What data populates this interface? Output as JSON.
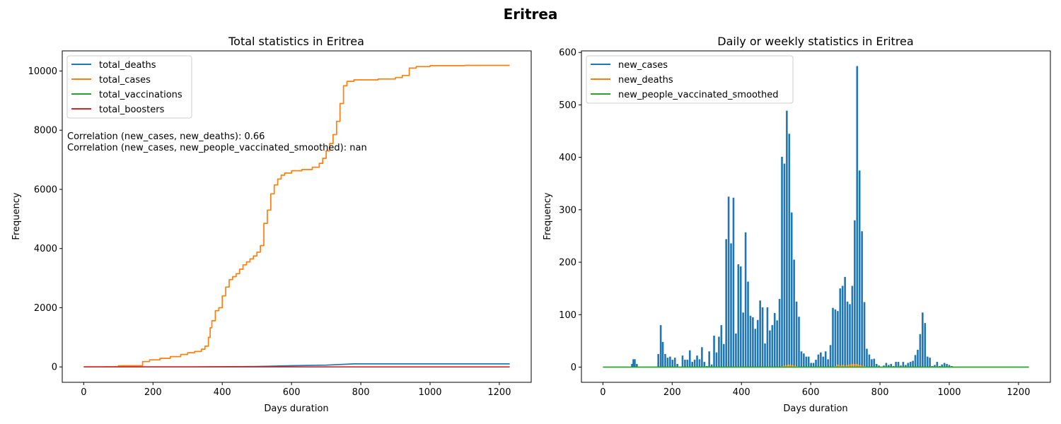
{
  "figure": {
    "title": "Eritrea"
  },
  "chart_data": [
    {
      "type": "line",
      "title": "Total statistics in Eritrea",
      "xlabel": "Days duration",
      "ylabel": "Frequency",
      "xlim": [
        -62,
        1292
      ],
      "ylim": [
        -520,
        10680
      ],
      "xticks": [
        0,
        200,
        400,
        600,
        800,
        1000,
        1200
      ],
      "yticks": [
        0,
        2000,
        4000,
        6000,
        8000,
        10000
      ],
      "legend_position": "top-left",
      "annotations": [
        "Correlation (new_cases, new_deaths): 0.66",
        "Correlation (new_cases, new_people_vaccinated_smoothed): nan"
      ],
      "series": [
        {
          "name": "total_deaths",
          "color": "#1f77b4",
          "points": [
            [
              0,
              0
            ],
            [
              300,
              0
            ],
            [
              500,
              15
            ],
            [
              600,
              40
            ],
            [
              700,
              60
            ],
            [
              780,
              103
            ],
            [
              1230,
              103
            ]
          ]
        },
        {
          "name": "total_cases",
          "color": "#ff7f0e",
          "step": true,
          "points": [
            [
              0,
              0
            ],
            [
              60,
              5
            ],
            [
              100,
              39
            ],
            [
              160,
              40
            ],
            [
              170,
              180
            ],
            [
              190,
              240
            ],
            [
              220,
              290
            ],
            [
              250,
              350
            ],
            [
              280,
              420
            ],
            [
              300,
              480
            ],
            [
              320,
              520
            ],
            [
              340,
              600
            ],
            [
              350,
              700
            ],
            [
              360,
              1000
            ],
            [
              365,
              1320
            ],
            [
              370,
              1560
            ],
            [
              380,
              1900
            ],
            [
              390,
              2000
            ],
            [
              400,
              2400
            ],
            [
              410,
              2700
            ],
            [
              420,
              2950
            ],
            [
              430,
              3050
            ],
            [
              440,
              3150
            ],
            [
              450,
              3300
            ],
            [
              460,
              3450
            ],
            [
              470,
              3550
            ],
            [
              480,
              3650
            ],
            [
              490,
              3750
            ],
            [
              500,
              3880
            ],
            [
              510,
              4100
            ],
            [
              520,
              4850
            ],
            [
              530,
              5300
            ],
            [
              540,
              5850
            ],
            [
              550,
              6150
            ],
            [
              560,
              6350
            ],
            [
              570,
              6480
            ],
            [
              580,
              6550
            ],
            [
              600,
              6630
            ],
            [
              630,
              6670
            ],
            [
              660,
              6750
            ],
            [
              680,
              6880
            ],
            [
              690,
              7050
            ],
            [
              700,
              7300
            ],
            [
              710,
              7550
            ],
            [
              720,
              7850
            ],
            [
              730,
              8300
            ],
            [
              740,
              8900
            ],
            [
              750,
              9500
            ],
            [
              760,
              9650
            ],
            [
              780,
              9700
            ],
            [
              850,
              9730
            ],
            [
              900,
              9780
            ],
            [
              920,
              9850
            ],
            [
              940,
              10100
            ],
            [
              960,
              10150
            ],
            [
              1000,
              10180
            ],
            [
              1100,
              10190
            ],
            [
              1230,
              10190
            ]
          ]
        },
        {
          "name": "total_vaccinations",
          "color": "#2ca02c",
          "points": []
        },
        {
          "name": "total_boosters",
          "color": "#d62728",
          "points": [
            [
              0,
              0
            ],
            [
              1230,
              0
            ]
          ]
        }
      ]
    },
    {
      "type": "bar",
      "title": "Daily or weekly statistics in Eritrea",
      "xlabel": "Days duration",
      "ylabel": "Frequency",
      "xlim": [
        -62,
        1292
      ],
      "ylim": [
        -29,
        603
      ],
      "xticks": [
        0,
        200,
        400,
        600,
        800,
        1000,
        1200
      ],
      "yticks": [
        0,
        100,
        200,
        300,
        400,
        500,
        600
      ],
      "legend_position": "top-left",
      "series": [
        {
          "name": "new_cases",
          "color": "#1f77b4",
          "bars": [
            [
              84,
              6
            ],
            [
              88,
              15
            ],
            [
              92,
              15
            ],
            [
              98,
              6
            ],
            [
              160,
              25
            ],
            [
              167,
              80
            ],
            [
              173,
              48
            ],
            [
              180,
              25
            ],
            [
              187,
              18
            ],
            [
              194,
              20
            ],
            [
              201,
              14
            ],
            [
              208,
              18
            ],
            [
              215,
              6
            ],
            [
              230,
              22
            ],
            [
              237,
              14
            ],
            [
              244,
              14
            ],
            [
              251,
              32
            ],
            [
              258,
              10
            ],
            [
              265,
              14
            ],
            [
              272,
              22
            ],
            [
              279,
              15
            ],
            [
              286,
              38
            ],
            [
              293,
              10
            ],
            [
              300,
              2
            ],
            [
              307,
              30
            ],
            [
              314,
              5
            ],
            [
              321,
              60
            ],
            [
              328,
              28
            ],
            [
              335,
              58
            ],
            [
              342,
              80
            ],
            [
              349,
              44
            ],
            [
              356,
              244
            ],
            [
              363,
              325
            ],
            [
              370,
              236
            ],
            [
              377,
              323
            ],
            [
              384,
              64
            ],
            [
              391,
              196
            ],
            [
              398,
              192
            ],
            [
              405,
              104
            ],
            [
              412,
              257
            ],
            [
              419,
              163
            ],
            [
              426,
              98
            ],
            [
              433,
              95
            ],
            [
              440,
              73
            ],
            [
              447,
              90
            ],
            [
              454,
              127
            ],
            [
              461,
              114
            ],
            [
              468,
              45
            ],
            [
              475,
              114
            ],
            [
              482,
              70
            ],
            [
              489,
              80
            ],
            [
              496,
              103
            ],
            [
              503,
              89
            ],
            [
              510,
              130
            ],
            [
              517,
              401
            ],
            [
              524,
              388
            ],
            [
              531,
              489
            ],
            [
              538,
              445
            ],
            [
              545,
              295
            ],
            [
              552,
              205
            ],
            [
              559,
              125
            ],
            [
              566,
              96
            ],
            [
              573,
              30
            ],
            [
              580,
              26
            ],
            [
              587,
              20
            ],
            [
              594,
              20
            ],
            [
              601,
              8
            ],
            [
              608,
              8
            ],
            [
              615,
              14
            ],
            [
              622,
              24
            ],
            [
              629,
              28
            ],
            [
              636,
              20
            ],
            [
              643,
              30
            ],
            [
              650,
              15
            ],
            [
              657,
              42
            ],
            [
              664,
              113
            ],
            [
              671,
              110
            ],
            [
              678,
              107
            ],
            [
              685,
              150
            ],
            [
              692,
              155
            ],
            [
              699,
              172
            ],
            [
              706,
              125
            ],
            [
              713,
              120
            ],
            [
              720,
              155
            ],
            [
              727,
              280
            ],
            [
              734,
              574
            ],
            [
              741,
              375
            ],
            [
              748,
              259
            ],
            [
              755,
              124
            ],
            [
              762,
              35
            ],
            [
              769,
              24
            ],
            [
              776,
              15
            ],
            [
              783,
              16
            ],
            [
              790,
              6
            ],
            [
              797,
              3
            ],
            [
              811,
              3
            ],
            [
              818,
              8
            ],
            [
              825,
              4
            ],
            [
              832,
              6
            ],
            [
              839,
              2
            ],
            [
              846,
              10
            ],
            [
              853,
              10
            ],
            [
              860,
              3
            ],
            [
              867,
              10
            ],
            [
              874,
              4
            ],
            [
              881,
              8
            ],
            [
              888,
              10
            ],
            [
              895,
              12
            ],
            [
              902,
              23
            ],
            [
              909,
              33
            ],
            [
              916,
              63
            ],
            [
              923,
              104
            ],
            [
              930,
              84
            ],
            [
              937,
              20
            ],
            [
              944,
              18
            ],
            [
              951,
              2
            ],
            [
              958,
              4
            ],
            [
              965,
              10
            ],
            [
              972,
              2
            ],
            [
              979,
              5
            ],
            [
              986,
              8
            ],
            [
              993,
              6
            ],
            [
              1000,
              4
            ],
            [
              1007,
              2
            ]
          ]
        },
        {
          "name": "new_deaths",
          "color": "#ff7f0e",
          "bars": [
            [
              517,
              2
            ],
            [
              524,
              3
            ],
            [
              531,
              4
            ],
            [
              538,
              5
            ],
            [
              545,
              4
            ],
            [
              552,
              3
            ],
            [
              559,
              2
            ],
            [
              566,
              1
            ],
            [
              664,
              1
            ],
            [
              671,
              2
            ],
            [
              678,
              5
            ],
            [
              685,
              3
            ],
            [
              692,
              4
            ],
            [
              699,
              3
            ],
            [
              706,
              4
            ],
            [
              713,
              5
            ],
            [
              720,
              6
            ],
            [
              727,
              6
            ],
            [
              734,
              6
            ],
            [
              741,
              4
            ],
            [
              748,
              3
            ],
            [
              755,
              2
            ]
          ]
        },
        {
          "name": "new_people_vaccinated_smoothed",
          "color": "#2ca02c",
          "line": [
            [
              0,
              0
            ],
            [
              1230,
              0
            ]
          ]
        }
      ]
    }
  ]
}
